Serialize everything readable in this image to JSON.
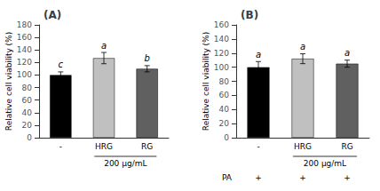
{
  "chart_data": [
    {
      "type": "bar",
      "title": "(A)",
      "categories": [
        "-",
        "HRG",
        "RG"
      ],
      "values": [
        100,
        127,
        110
      ],
      "errors": [
        5,
        9,
        5
      ],
      "colors": [
        "#000000",
        "#c0c0c0",
        "#606060"
      ],
      "annotations": [
        "c",
        "a",
        "b"
      ],
      "ylabel": "Relative cell viability (%)",
      "ylim": [
        0,
        180
      ],
      "yticks": [
        0,
        20,
        40,
        60,
        80,
        100,
        120,
        140,
        160,
        180
      ],
      "grid": false,
      "group_label": "200 μg/mL"
    },
    {
      "type": "bar",
      "title": "(B)",
      "categories": [
        "-",
        "HRG",
        "RG"
      ],
      "values": [
        100,
        112,
        105
      ],
      "errors": [
        8,
        7,
        5
      ],
      "colors": [
        "#000000",
        "#c0c0c0",
        "#606060"
      ],
      "annotations": [
        "a",
        "a",
        "a"
      ],
      "ylabel": "Relative cell viability (%)",
      "ylim": [
        0,
        160
      ],
      "yticks": [
        0,
        20,
        40,
        60,
        80,
        100,
        120,
        140,
        160
      ],
      "grid": false,
      "group_label": "200 μg/mL",
      "row2_label": "PA",
      "row2_labels": [
        "+",
        "+",
        "+"
      ]
    }
  ]
}
